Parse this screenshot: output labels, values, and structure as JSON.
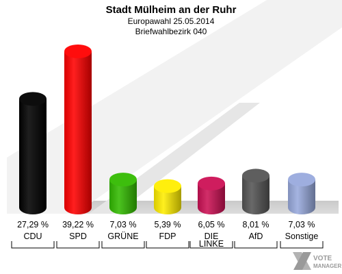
{
  "chart_data": {
    "type": "bar",
    "title": "Stadt Mülheim an der Ruhr",
    "subtitle": "Europawahl 25.05.2014",
    "subtitle2": "Briefwahlbezirk 040",
    "categories": [
      "CDU",
      "SPD",
      "GRÜNE",
      "FDP",
      "DIE LINKE",
      "AfD",
      "Sonstige"
    ],
    "category_lines": [
      [
        "CDU"
      ],
      [
        "SPD"
      ],
      [
        "GRÜNE"
      ],
      [
        "FDP"
      ],
      [
        "DIE",
        "LINKE"
      ],
      [
        "AfD"
      ],
      [
        "Sonstige"
      ]
    ],
    "values": [
      27.29,
      39.22,
      7.03,
      5.39,
      6.05,
      8.01,
      7.03
    ],
    "value_labels": [
      "27,29 %",
      "39,22 %",
      "7,03 %",
      "5,39 %",
      "6,05 %",
      "8,01 %",
      "7,03 %"
    ],
    "colors": [
      "#000000",
      "#ff0000",
      "#33bb00",
      "#ffee00",
      "#cc1155",
      "#555555",
      "#99aadd"
    ],
    "ylim": [
      0,
      39.22
    ],
    "grid": false,
    "legend": "none"
  },
  "watermark": {
    "line1": "VOTE",
    "line2": "MANAGER"
  }
}
